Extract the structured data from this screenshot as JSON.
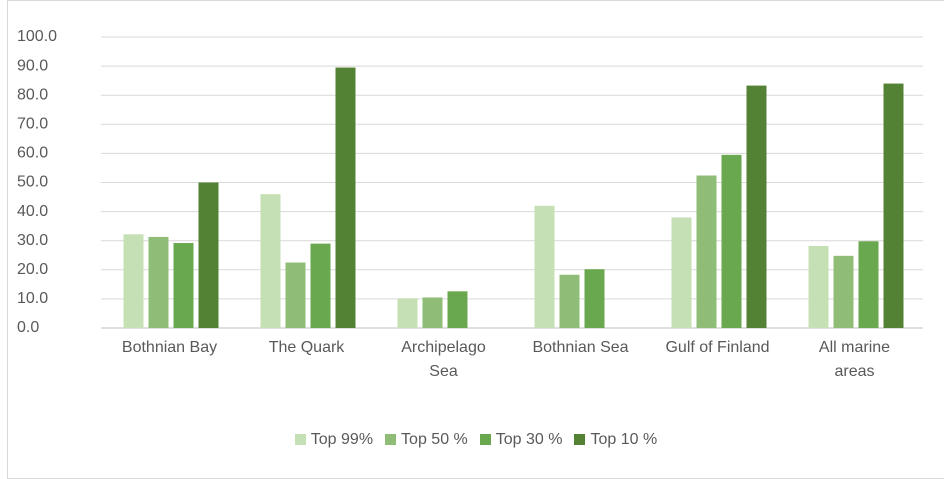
{
  "chart_data": {
    "type": "bar",
    "categories": [
      "Bothnian Bay",
      "The Quark",
      "Archipelago Sea",
      "Bothnian Sea",
      "Gulf of Finland",
      "All marine areas"
    ],
    "series": [
      {
        "name": "Top 99%",
        "color": "#c5e0b4",
        "values": [
          32.2,
          46.0,
          10.2,
          42.0,
          38.0,
          28.2
        ]
      },
      {
        "name": "Top 50 %",
        "color": "#8fbc77",
        "values": [
          31.3,
          22.5,
          10.5,
          18.3,
          52.4,
          24.8
        ]
      },
      {
        "name": "Top 30 %",
        "color": "#6aa84f",
        "values": [
          29.2,
          29.0,
          12.6,
          20.2,
          59.5,
          29.8
        ]
      },
      {
        "name": "Top 10 %",
        "color": "#548235",
        "values": [
          50.0,
          89.5,
          null,
          null,
          83.3,
          84.0
        ]
      }
    ],
    "ylim": [
      0,
      100
    ],
    "yticks": [
      {
        "value": 0,
        "label": "0.0"
      },
      {
        "value": 10,
        "label": "10.0"
      },
      {
        "value": 20,
        "label": "20.0"
      },
      {
        "value": 30,
        "label": "30.0"
      },
      {
        "value": 40,
        "label": "40.0"
      },
      {
        "value": 50,
        "label": "50.0"
      },
      {
        "value": 60,
        "label": "60.0"
      },
      {
        "value": 70,
        "label": "70.0"
      },
      {
        "value": 80,
        "label": "80.0"
      },
      {
        "value": 90,
        "label": "90.0"
      },
      {
        "value": 100,
        "label": "100.0"
      }
    ],
    "grid": true,
    "legend": "bottom"
  }
}
